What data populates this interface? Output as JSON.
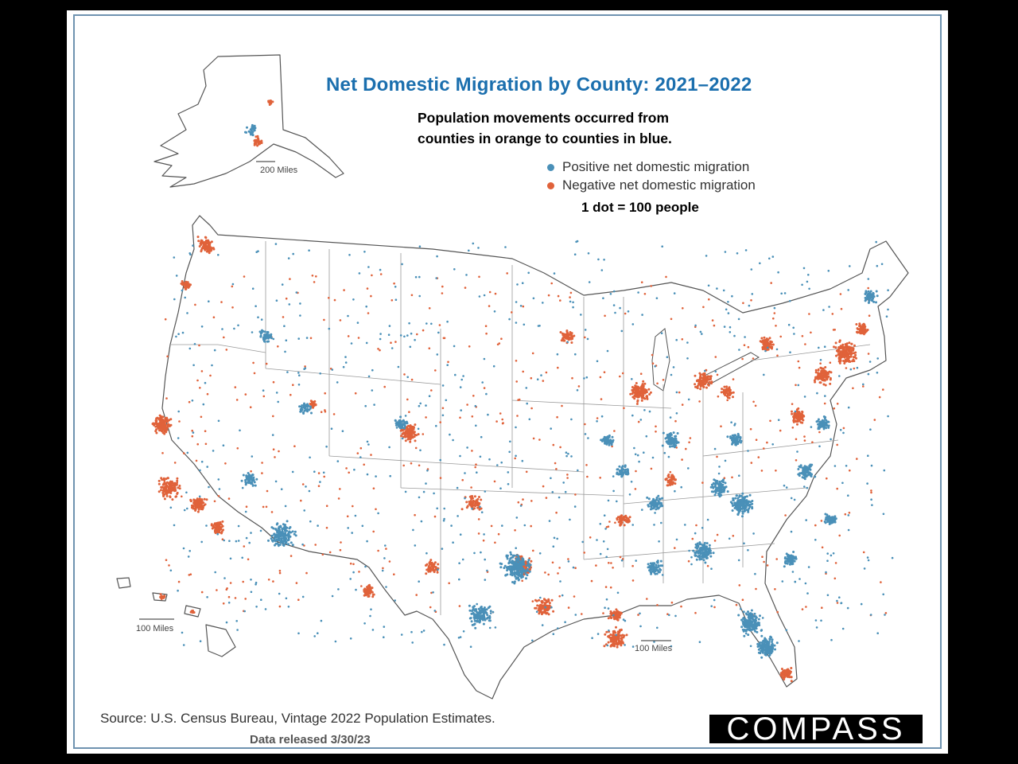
{
  "title": "Net Domestic Migration by County: 2021–2022",
  "subtitle_line1": "Population movements occurred from",
  "subtitle_line2": "counties in orange to counties in blue.",
  "legend": [
    {
      "label": "Positive net domestic migration",
      "color": "#4a90b8"
    },
    {
      "label": "Negative net domestic migration",
      "color": "#e0623a"
    }
  ],
  "dot_scale": "1 dot = 100 people",
  "scale_bars": {
    "alaska": "200 Miles",
    "hawaii": "100 Miles",
    "conus": "100 Miles"
  },
  "source": "Source: U.S. Census Bureau, Vintage 2022 Population Estimates.",
  "released": "Data released 3/30/23",
  "brand": "COMPASS",
  "colors": {
    "positive": "#4a90b8",
    "negative": "#e0623a",
    "title": "#1b6fae",
    "border": "#6f93b0"
  }
}
